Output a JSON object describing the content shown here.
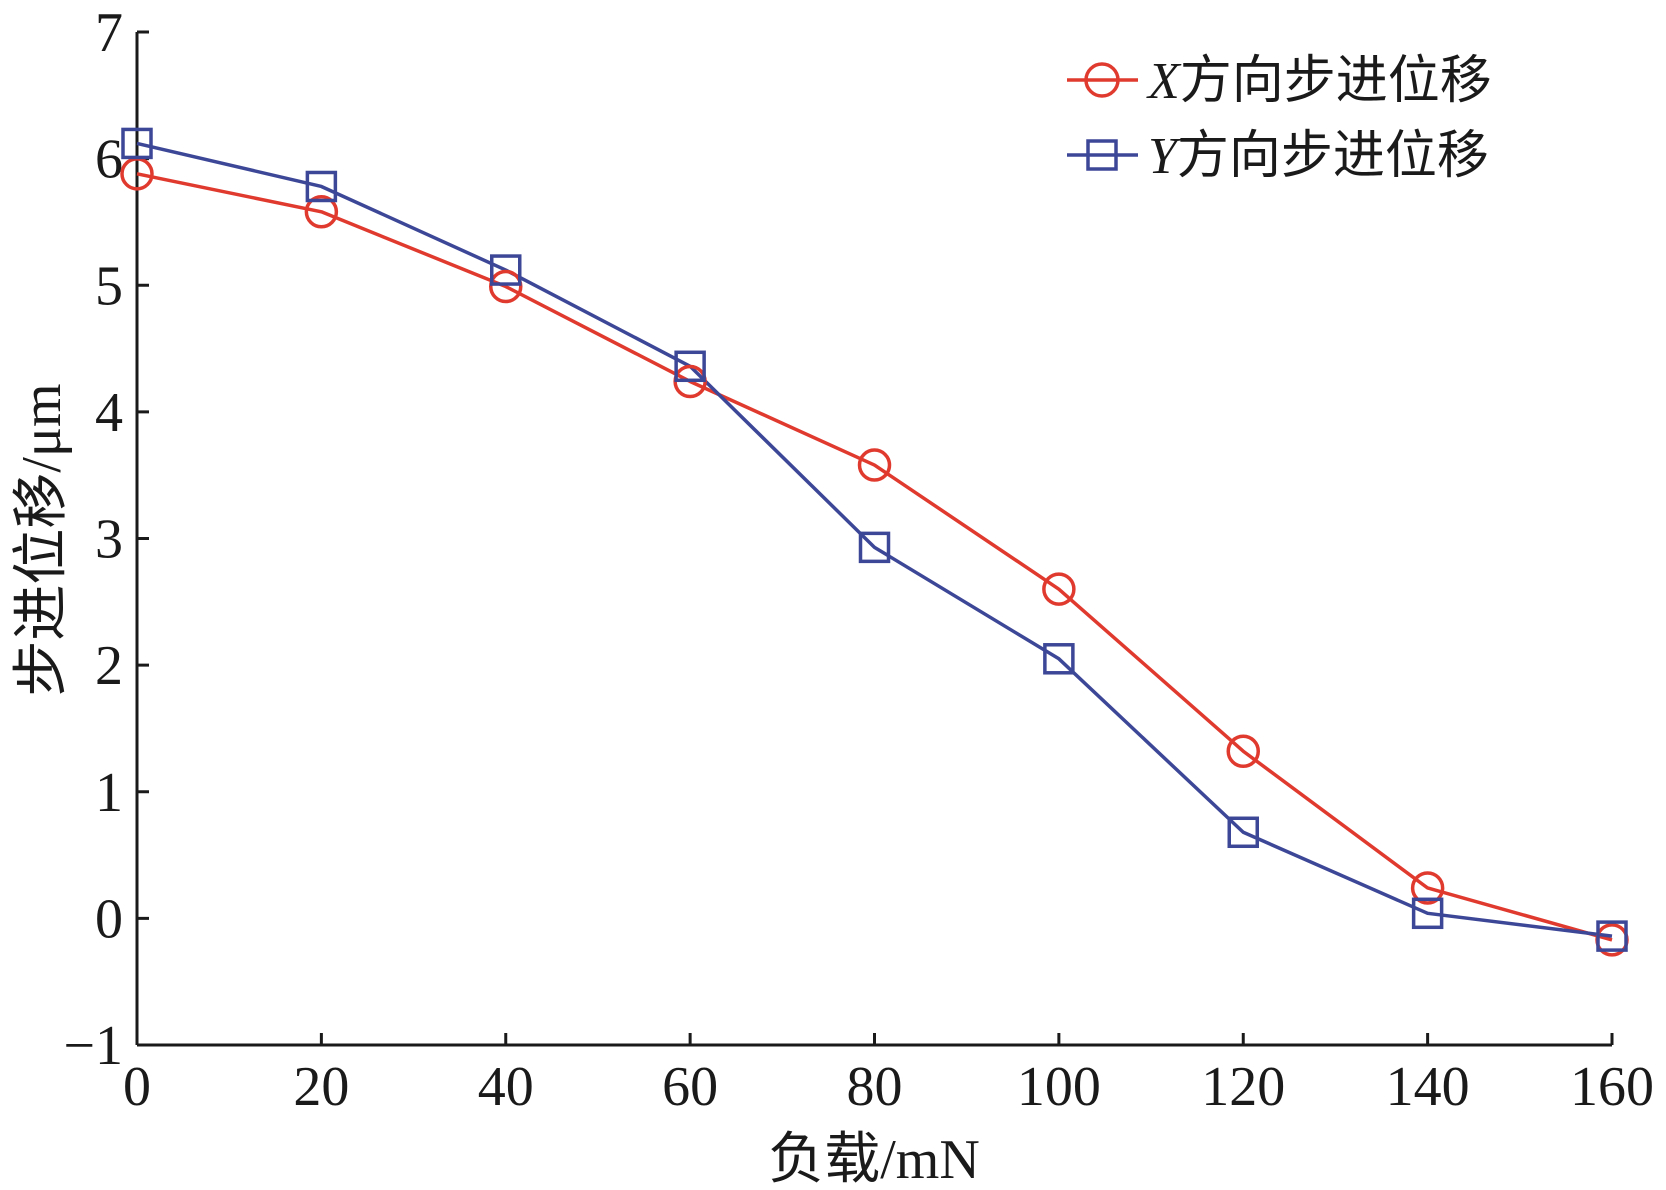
{
  "chart_data": {
    "type": "line",
    "xlabel": "负载/mN",
    "ylabel": "步进位移/μm",
    "xlim": [
      0,
      160
    ],
    "ylim": [
      -1,
      7
    ],
    "x_ticks": [
      "0",
      "20",
      "40",
      "60",
      "80",
      "100",
      "120",
      "140",
      "160"
    ],
    "y_ticks": [
      "−1",
      "0",
      "1",
      "2",
      "3",
      "4",
      "5",
      "6",
      "7"
    ],
    "x": [
      0,
      20,
      40,
      60,
      80,
      100,
      120,
      140,
      160
    ],
    "grid": false,
    "legend_position": "top-right",
    "series": [
      {
        "name_italic": "X",
        "name_rest": "方向步进位移",
        "marker": "circle",
        "color": "#e03a2f",
        "values": [
          5.88,
          5.58,
          4.99,
          4.24,
          3.58,
          2.6,
          1.32,
          0.24,
          -0.17
        ]
      },
      {
        "name_italic": "Y",
        "name_rest": "方向步进位移",
        "marker": "square",
        "color": "#3d4797",
        "values": [
          6.12,
          5.78,
          5.12,
          4.36,
          2.93,
          2.05,
          0.68,
          0.04,
          -0.14
        ]
      }
    ]
  }
}
